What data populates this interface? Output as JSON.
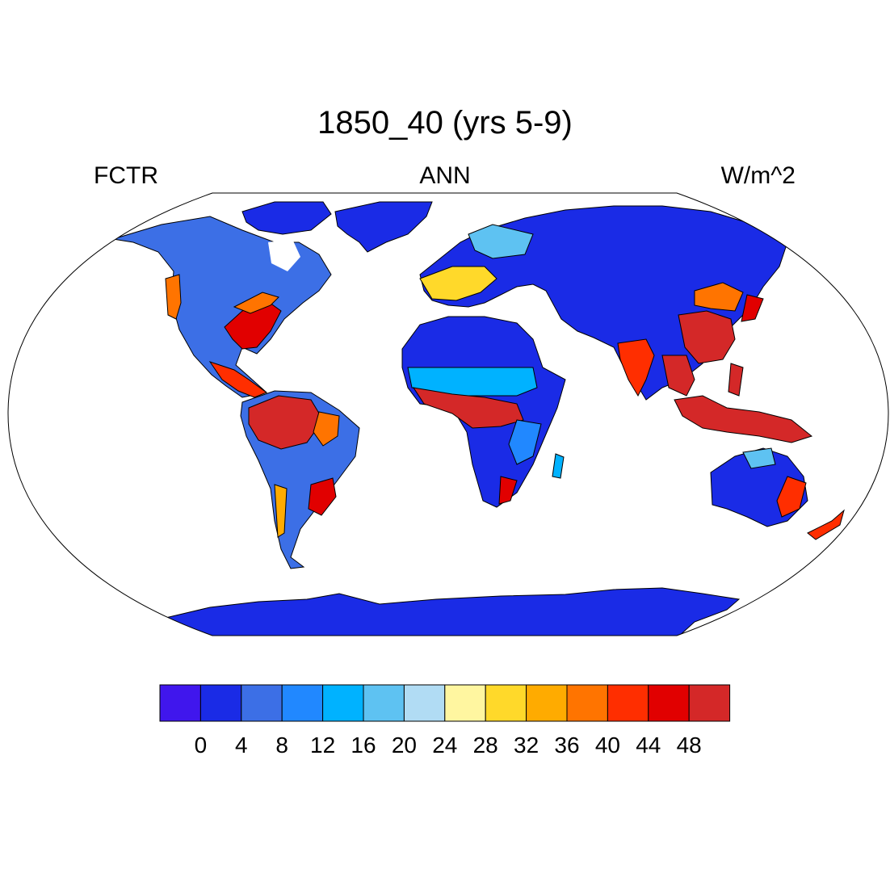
{
  "figure": {
    "title": "1850_40 (yrs 5-9)",
    "variable": "FCTR",
    "period": "ANN",
    "units": "W/m^2"
  },
  "colorbar": {
    "levels": [
      "0",
      "4",
      "8",
      "12",
      "16",
      "20",
      "24",
      "28",
      "32",
      "36",
      "40",
      "44",
      "48"
    ],
    "colors": [
      "#4016ed",
      "#1a2be6",
      "#3c6fe6",
      "#2188ff",
      "#00b2ff",
      "#5ec2f2",
      "#b1dcf4",
      "#fff6a0",
      "#ffd92a",
      "#ffab00",
      "#ff7400",
      "#ff2e00",
      "#e10000",
      "#d42828"
    ]
  },
  "map": {
    "projection": "Robinson",
    "land_regions": [
      {
        "name": "North America",
        "level": "mixed 0-48"
      },
      {
        "name": "South America",
        "level": "mixed 0-48"
      },
      {
        "name": "Africa",
        "level": "mixed 0-48"
      },
      {
        "name": "Eurasia",
        "level": "mixed 0-48"
      },
      {
        "name": "Australia",
        "level": "mixed 0-48"
      },
      {
        "name": "Greenland",
        "level": "0-4"
      },
      {
        "name": "Antarctica",
        "level": "0-4"
      }
    ]
  }
}
